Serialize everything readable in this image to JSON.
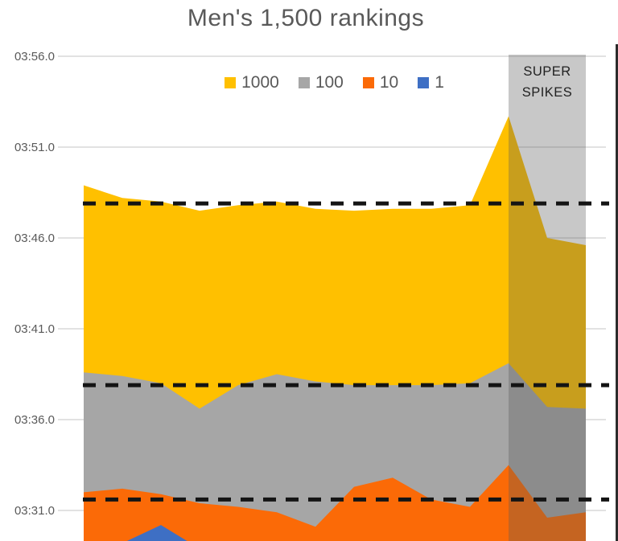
{
  "title": "Men's 1,500 rankings",
  "legend": [
    {
      "label": "1000",
      "color": "#FFC000"
    },
    {
      "label": "100",
      "color": "#A6A6A6"
    },
    {
      "label": "10",
      "color": "#FB6A07"
    },
    {
      "label": "1",
      "color": "#3E6FC4"
    }
  ],
  "band": {
    "label_line1": "SUPER",
    "label_line2": "SPIKES",
    "color": "rgba(89,89,89,0.33)",
    "covers_points": [
      11,
      13
    ]
  },
  "chart_data": {
    "type": "area",
    "title": "Men's 1,500 rankings",
    "x_points": 14,
    "x_tick_labels_visible": false,
    "legend_position": "top-center",
    "grid": "horizontal",
    "y_axis": {
      "unit": "time mm:ss.0 (1,500 m season time at given world-ranking depth)",
      "visible_range_seconds": [
        209.3,
        236.0
      ],
      "ticks": [
        {
          "label": "03:56.0",
          "seconds": 236
        },
        {
          "label": "03:51.0",
          "seconds": 231
        },
        {
          "label": "03:46.0",
          "seconds": 226
        },
        {
          "label": "03:41.0",
          "seconds": 221
        },
        {
          "label": "03:36.0",
          "seconds": 216
        },
        {
          "label": "03:31.0",
          "seconds": 211
        }
      ]
    },
    "series": [
      {
        "name": "1000",
        "color": "#FFC000",
        "values_seconds": [
          228.9,
          228.2,
          228.0,
          227.5,
          227.8,
          228.0,
          227.6,
          227.5,
          227.6,
          227.6,
          227.8,
          232.7,
          226.0,
          225.6
        ]
      },
      {
        "name": "100",
        "color": "#A6A6A6",
        "values_seconds": [
          218.6,
          218.4,
          218.0,
          216.6,
          217.9,
          218.5,
          218.1,
          217.9,
          217.9,
          217.9,
          218.0,
          219.1,
          216.7,
          216.6
        ]
      },
      {
        "name": "10",
        "color": "#FB6A07",
        "values_seconds": [
          212.0,
          212.2,
          211.9,
          211.4,
          211.2,
          210.9,
          210.1,
          212.3,
          212.8,
          211.6,
          211.2,
          213.5,
          210.6,
          210.9
        ]
      },
      {
        "name": "1",
        "color": "#3E6FC4",
        "values_seconds": [
          208.9,
          209.2,
          210.2,
          208.9,
          208.6,
          208.6,
          208.7,
          208.6,
          208.6,
          208.6,
          208.6,
          208.8,
          208.6,
          208.6
        ]
      }
    ],
    "dashed_reference_lines_seconds": [
      227.9,
      217.9,
      211.6
    ],
    "annotation_band": {
      "label": "SUPER SPIKES",
      "from_point": 11,
      "to_point": 13
    }
  }
}
